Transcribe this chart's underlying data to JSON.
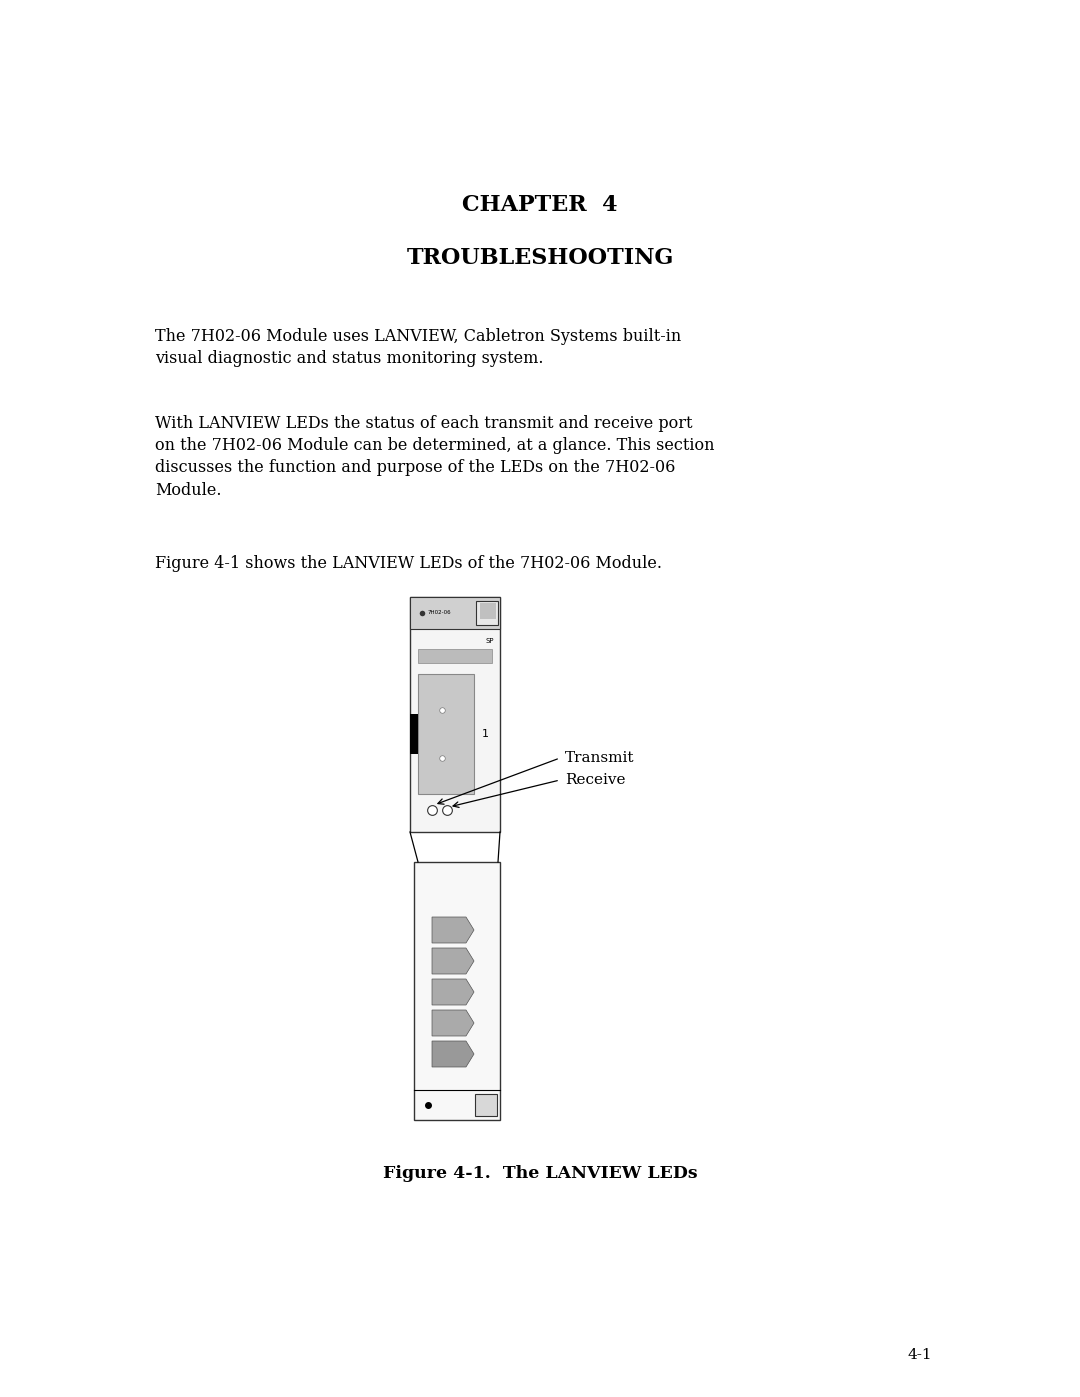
{
  "title1": "CHAPTER  4",
  "title2": "TROUBLESHOOTING",
  "para1": "The 7H02-06 Module uses LANVIEW, Cabletron Systems built-in\nvisual diagnostic and status monitoring system.",
  "para2": "With LANVIEW LEDs the status of each transmit and receive port\non the 7H02-06 Module can be determined, at a glance. This section\ndiscusses the function and purpose of the LEDs on the 7H02-06\nModule.",
  "para3": "Figure 4-1 shows the LANVIEW LEDs of the 7H02-06 Module.",
  "fig_caption": "Figure 4-1.  The LANVIEW LEDs",
  "page_num": "4-1",
  "bg_color": "#ffffff",
  "text_color": "#000000",
  "module_label": "7H02-06",
  "sp_label": "SP",
  "port_label": "1",
  "transmit_label": "Transmit",
  "receive_label": "Receive"
}
